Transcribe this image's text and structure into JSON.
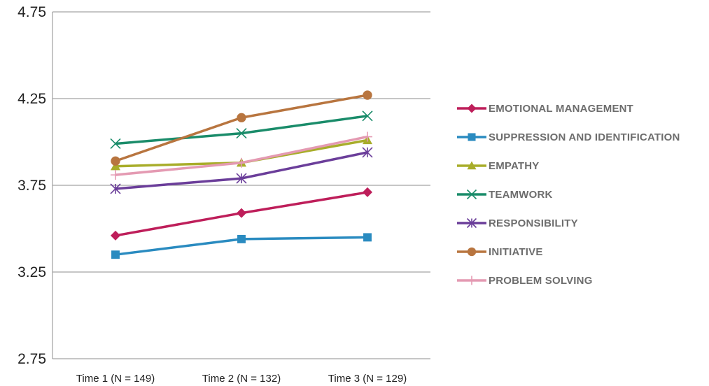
{
  "chart_data": {
    "type": "line",
    "categories": [
      "Time 1 (N = 149)",
      "Time 2 (N = 132)",
      "Time 3 (N = 129)"
    ],
    "ylim": [
      2.75,
      4.75
    ],
    "yticks": [
      "2.75",
      "3.25",
      "3.75",
      "4.25",
      "4.75"
    ],
    "grid": "horizontal",
    "legend_position": "right",
    "series": [
      {
        "name": "EMOTIONAL MANAGEMENT",
        "values": [
          3.46,
          3.59,
          3.71
        ],
        "color": "#be1e5a",
        "marker": "diamond"
      },
      {
        "name": "SUPPRESSION AND IDENTIFICATION",
        "values": [
          3.35,
          3.44,
          3.45
        ],
        "color": "#2a8bc0",
        "marker": "square"
      },
      {
        "name": "EMPATHY",
        "values": [
          3.86,
          3.88,
          4.01
        ],
        "color": "#a8ad2a",
        "marker": "triangle"
      },
      {
        "name": "TEAMWORK",
        "values": [
          3.99,
          4.05,
          4.15
        ],
        "color": "#1a8c6a",
        "marker": "x"
      },
      {
        "name": "RESPONSIBILITY",
        "values": [
          3.73,
          3.79,
          3.94
        ],
        "color": "#6b3e9a",
        "marker": "asterisk"
      },
      {
        "name": "INITIATIVE",
        "values": [
          3.89,
          4.14,
          4.27
        ],
        "color": "#b8753f",
        "marker": "circle"
      },
      {
        "name": "PROBLEM SOLVING",
        "values": [
          3.81,
          3.88,
          4.03
        ],
        "color": "#e49ab2",
        "marker": "plus"
      }
    ]
  }
}
